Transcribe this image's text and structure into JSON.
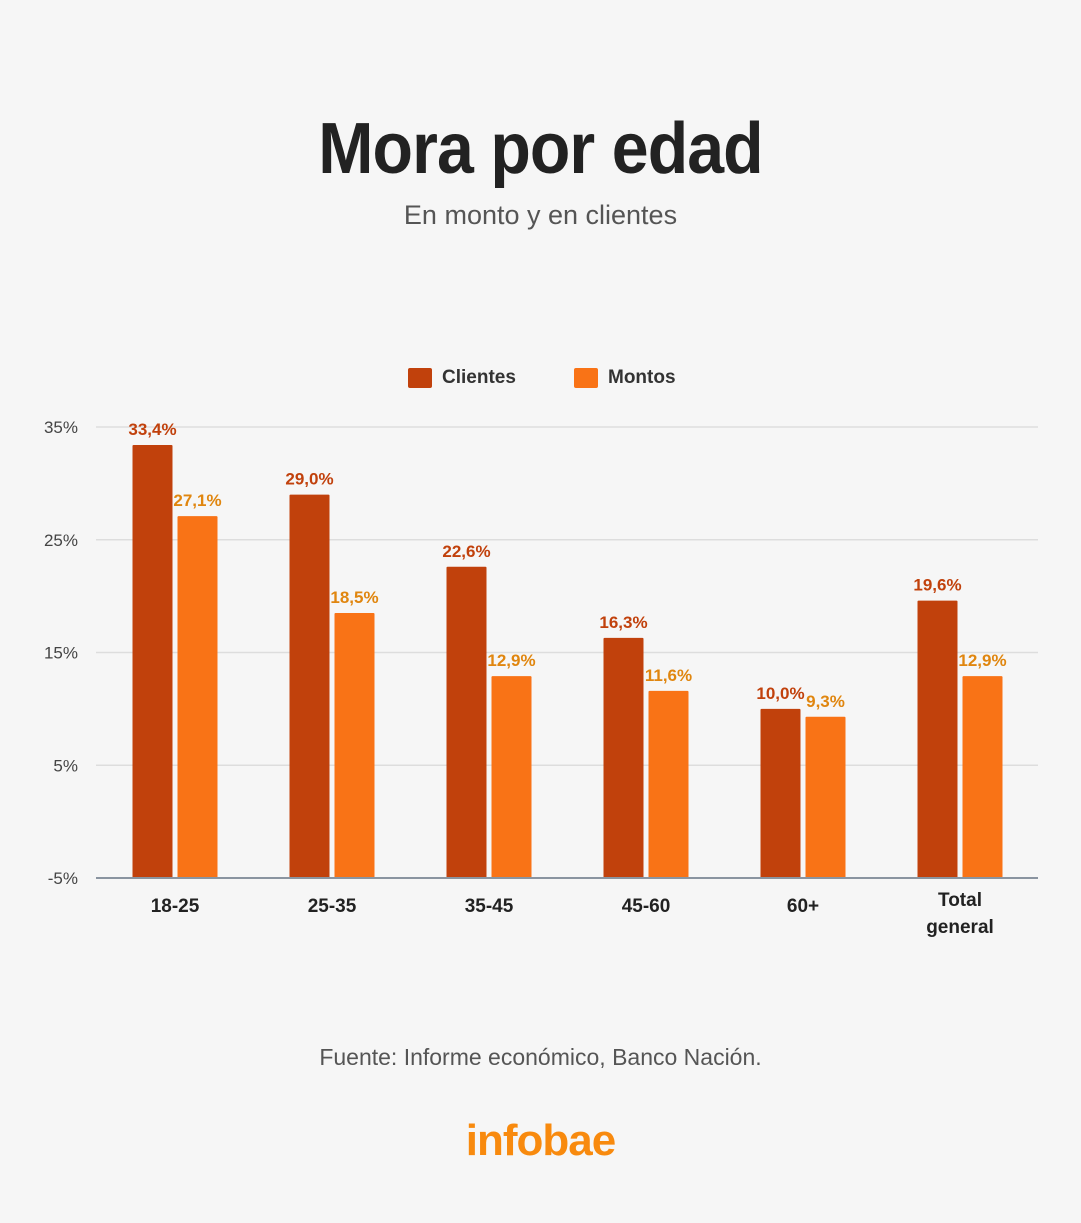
{
  "title": "Mora por edad",
  "subtitle": "En monto y en clientes",
  "source": "Fuente: Informe económico, Banco Nación.",
  "logo": "infobae",
  "colors": {
    "clientes": "#c1410c",
    "montos": "#f97316",
    "clientes_label": "#c1410c",
    "montos_label": "#e0860f",
    "logo": "#f88a0e"
  },
  "chart_data": {
    "type": "bar",
    "categories": [
      "18-25",
      "25-35",
      "35-45",
      "45-60",
      "60+",
      "Total general"
    ],
    "series": [
      {
        "name": "Clientes",
        "values": [
          33.4,
          29.0,
          22.6,
          16.3,
          10.0,
          19.6
        ],
        "labels": [
          "33,4%",
          "29,0%",
          "22,6%",
          "16,3%",
          "10,0%",
          "19,6%"
        ]
      },
      {
        "name": "Montos",
        "values": [
          27.1,
          18.5,
          12.9,
          11.6,
          9.3,
          12.9
        ],
        "labels": [
          "27,1%",
          "18,5%",
          "12,9%",
          "11,6%",
          "9,3%",
          "12,9%"
        ]
      }
    ],
    "yticks": [
      35,
      25,
      15,
      5,
      -5
    ],
    "ytick_labels": [
      "35%",
      "25%",
      "15%",
      "5%",
      "-5%"
    ],
    "ylim": [
      -5,
      35
    ],
    "grid": true,
    "legend_position": "top-center",
    "xlabel": "",
    "ylabel": ""
  }
}
